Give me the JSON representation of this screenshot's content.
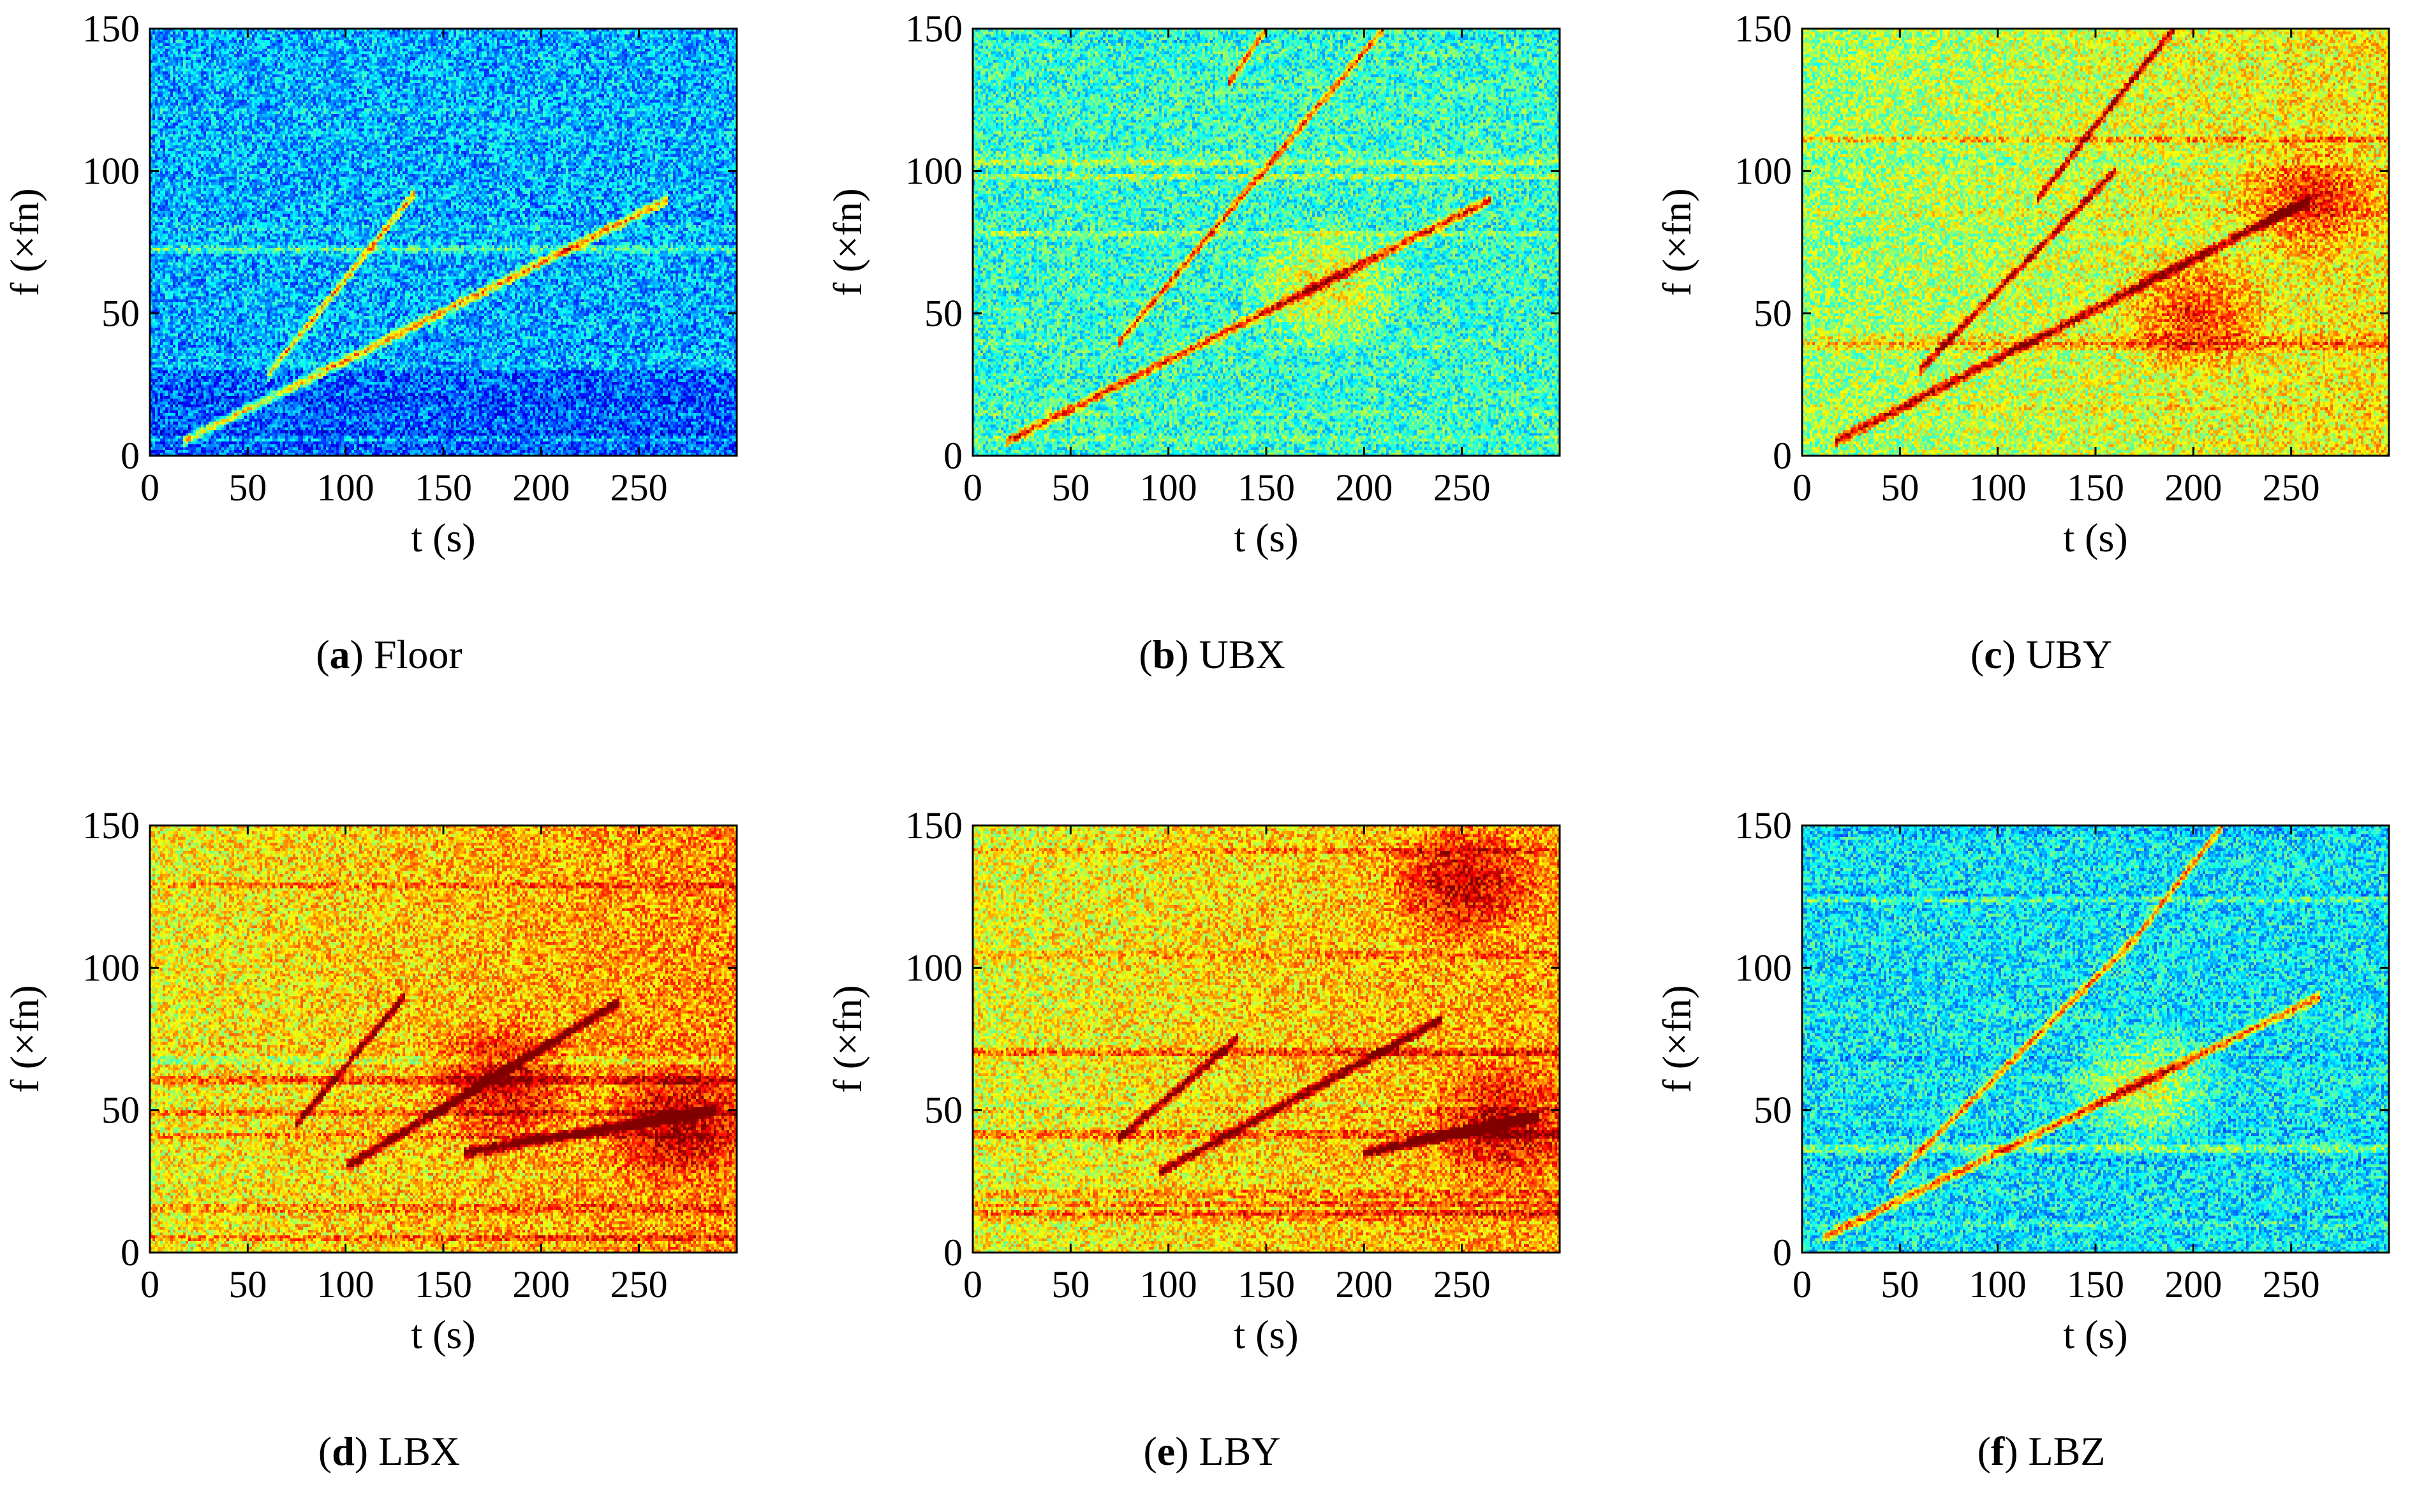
{
  "figure": {
    "panels": [
      {
        "letter": "a",
        "label": "Floor",
        "level": 0.3,
        "lines": [
          [
            17,
            5,
            265,
            90
          ],
          [
            60,
            28,
            135,
            92
          ]
        ],
        "hot": []
      },
      {
        "letter": "b",
        "label": "UBX",
        "level": 0.42,
        "lines": [
          [
            17,
            5,
            265,
            90
          ],
          [
            75,
            40,
            210,
            150
          ],
          [
            130,
            130,
            150,
            150
          ]
        ],
        "hot": [
          [
            180,
            60
          ]
        ]
      },
      {
        "letter": "c",
        "label": "UBY",
        "level": 0.52,
        "lines": [
          [
            17,
            5,
            260,
            90
          ],
          [
            60,
            30,
            160,
            100
          ],
          [
            120,
            90,
            190,
            150
          ]
        ],
        "hot": [
          [
            260,
            90
          ],
          [
            200,
            50
          ]
        ]
      },
      {
        "letter": "d",
        "label": "LBX",
        "level": 0.62,
        "lines": [
          [
            100,
            30,
            240,
            88
          ],
          [
            75,
            45,
            130,
            90
          ],
          [
            160,
            35,
            290,
            50
          ]
        ],
        "hot": [
          [
            270,
            45
          ],
          [
            180,
            60
          ]
        ]
      },
      {
        "letter": "e",
        "label": "LBY",
        "level": 0.6,
        "lines": [
          [
            95,
            28,
            240,
            82
          ],
          [
            75,
            40,
            135,
            75
          ],
          [
            200,
            35,
            290,
            48
          ]
        ],
        "hot": [
          [
            270,
            45
          ],
          [
            250,
            130
          ]
        ]
      },
      {
        "letter": "f",
        "label": "LBZ",
        "level": 0.36,
        "lines": [
          [
            10,
            5,
            265,
            90
          ],
          [
            45,
            25,
            170,
            110
          ],
          [
            170,
            110,
            215,
            150
          ]
        ],
        "hot": [
          [
            175,
            58
          ]
        ]
      }
    ]
  },
  "chart_data": [
    {
      "type": "heatmap",
      "title": "(a) Floor",
      "xlabel": "t (s)",
      "ylabel": "f (×fn)",
      "xlim": [
        0,
        300
      ],
      "ylim": [
        0,
        150
      ],
      "xticks": [
        "0",
        "50",
        "100",
        "150",
        "200",
        "250"
      ],
      "yticks": [
        "0",
        "50",
        "100",
        "150"
      ],
      "features": [
        "order line rising from ~5 ×fn at 17 s to ~90 ×fn at 265 s",
        "low-energy background"
      ]
    },
    {
      "type": "heatmap",
      "title": "(b) UBX",
      "xlabel": "t (s)",
      "ylabel": "f (×fn)",
      "xlim": [
        0,
        300
      ],
      "ylim": [
        0,
        150
      ],
      "xticks": [
        "0",
        "50",
        "100",
        "150",
        "200",
        "250"
      ],
      "yticks": [
        "0",
        "50",
        "100",
        "150"
      ],
      "features": [
        "main order line to ~90 ×fn at 265 s",
        "secondary line toward 150 ×fn"
      ]
    },
    {
      "type": "heatmap",
      "title": "(c) UBY",
      "xlabel": "t (s)",
      "ylabel": "f (×fn)",
      "xlim": [
        0,
        300
      ],
      "ylim": [
        0,
        150
      ],
      "xticks": [
        "0",
        "50",
        "100",
        "150",
        "200",
        "250"
      ],
      "yticks": [
        "0",
        "50",
        "100",
        "150"
      ],
      "features": [
        "strong order line peaking ~90 ×fn near 260 s",
        "band near 100 ×fn"
      ]
    },
    {
      "type": "heatmap",
      "title": "(d) LBX",
      "xlabel": "t (s)",
      "ylabel": "f (×fn)",
      "xlim": [
        0,
        300
      ],
      "ylim": [
        0,
        150
      ],
      "xticks": [
        "0",
        "50",
        "100",
        "150",
        "200",
        "250"
      ],
      "yticks": [
        "0",
        "50",
        "100",
        "150"
      ],
      "features": [
        "high energy 30–80 ×fn after 200 s",
        "bands near 40, 60, 117 ×fn"
      ]
    },
    {
      "type": "heatmap",
      "title": "(e) LBY",
      "xlabel": "t (s)",
      "ylabel": "f (×fn)",
      "xlim": [
        0,
        300
      ],
      "ylim": [
        0,
        150
      ],
      "xticks": [
        "0",
        "50",
        "100",
        "150",
        "200",
        "250"
      ],
      "yticks": [
        "0",
        "50",
        "100",
        "150"
      ],
      "features": [
        "high energy 30–60 ×fn after 200 s",
        "bands near 40, 58, 117 ×fn"
      ]
    },
    {
      "type": "heatmap",
      "title": "(f) LBZ",
      "xlabel": "t (s)",
      "ylabel": "f (×fn)",
      "xlim": [
        0,
        300
      ],
      "ylim": [
        0,
        150
      ],
      "xticks": [
        "0",
        "50",
        "100",
        "150",
        "200",
        "250"
      ],
      "yticks": [
        "0",
        "50",
        "100",
        "150"
      ],
      "features": [
        "order line to ~90 ×fn at 265 s",
        "line reaching 150 ×fn near 215 s"
      ]
    }
  ]
}
